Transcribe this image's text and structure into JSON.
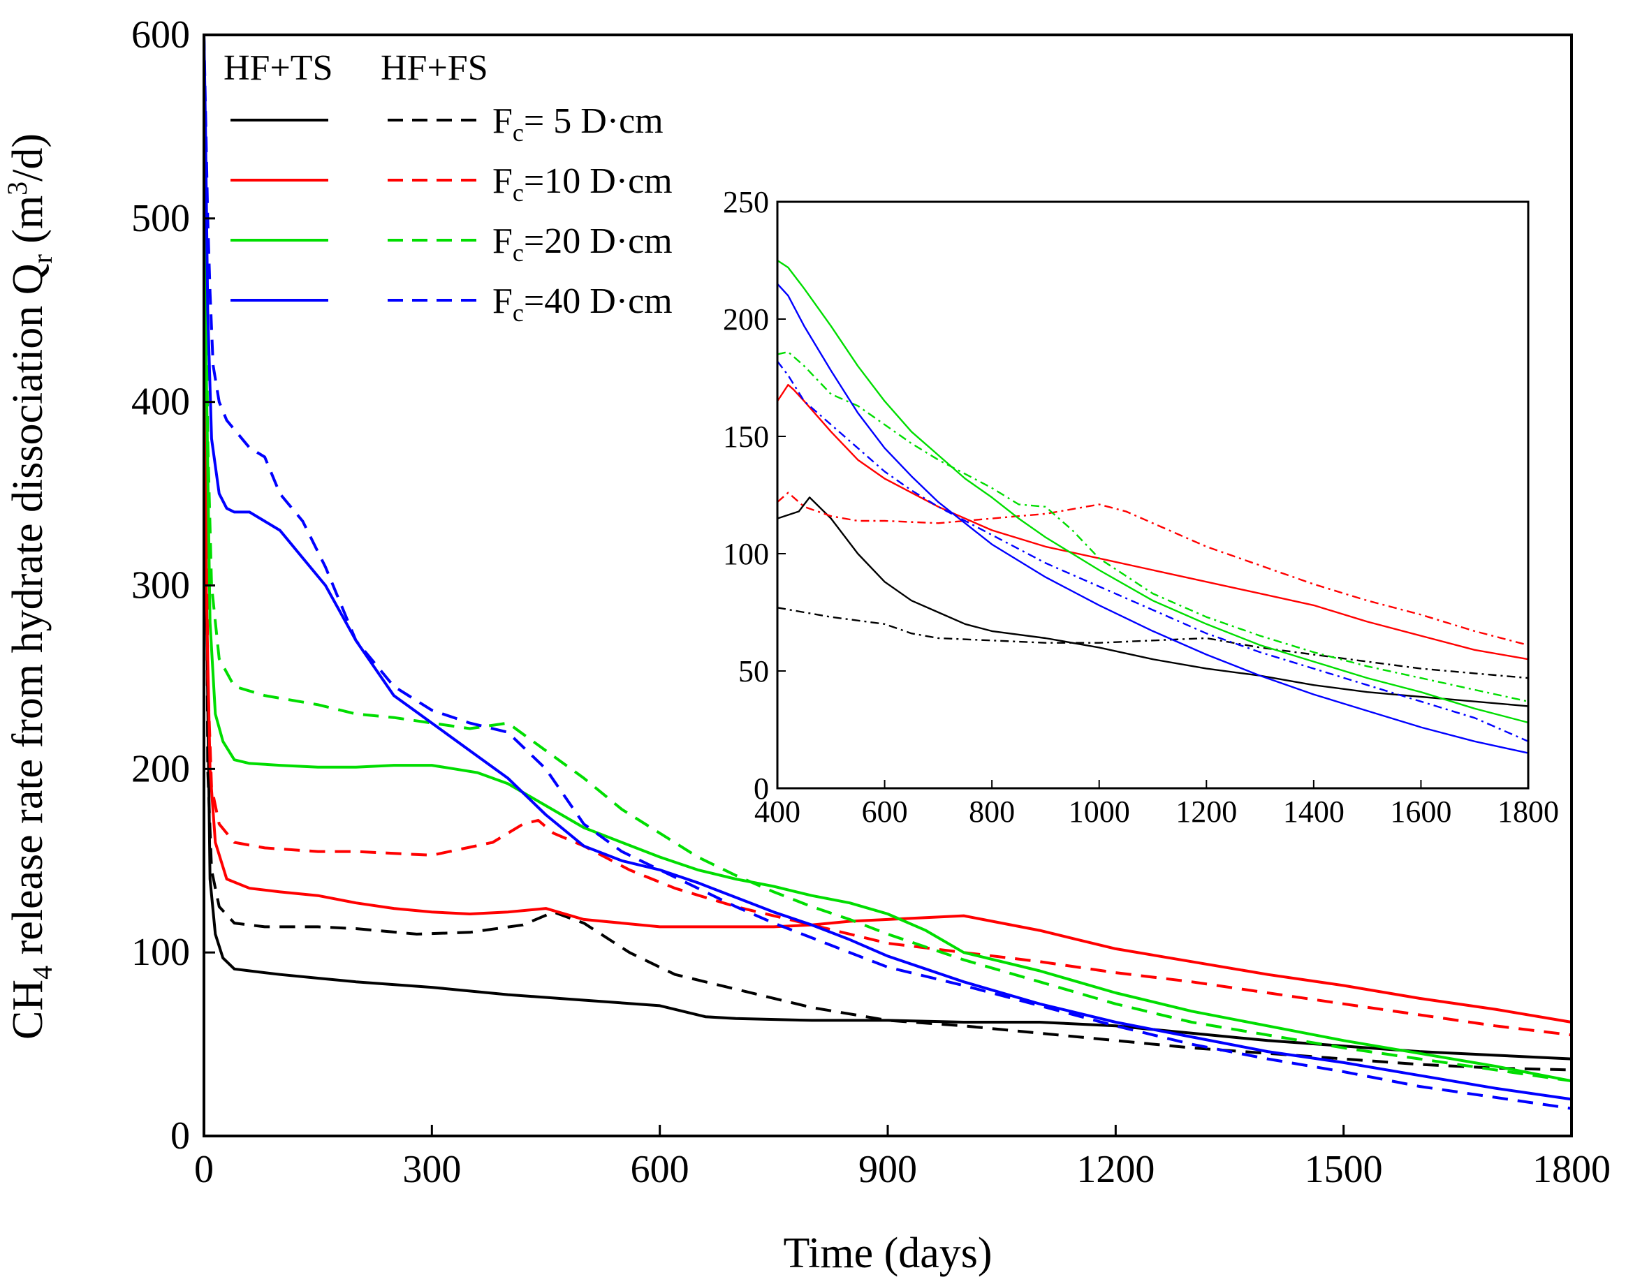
{
  "chart_data": {
    "main": {
      "type": "line",
      "title": "",
      "xlabel": "Time (days)",
      "ylabel": "CH4 release rate from hydrate dissociation Qr (m3/d)",
      "ylabel_parts": {
        "a": "CH",
        "a_sub": "4",
        "b": " release rate from hydrate dissociation Q",
        "b_sub": "r",
        "c": " (m",
        "c_sup": "3",
        "d": "/d)"
      },
      "xlim": [
        0,
        1800
      ],
      "ylim": [
        0,
        600
      ],
      "xticks": [
        0,
        300,
        600,
        900,
        1200,
        1500,
        1800
      ],
      "yticks": [
        0,
        100,
        200,
        300,
        400,
        500,
        600
      ],
      "legend": {
        "placement": "top-left",
        "col_headers": [
          "HF+TS",
          "HF+FS"
        ],
        "entries": [
          {
            "F": "F",
            "sub": "c",
            "label": "= 5  D·cm"
          },
          {
            "F": "F",
            "sub": "c",
            "label": "=10 D·cm"
          },
          {
            "F": "F",
            "sub": "c",
            "label": "=20 D·cm"
          },
          {
            "F": "F",
            "sub": "c",
            "label": "=40 D·cm"
          }
        ]
      },
      "series": [
        {
          "name": "HF+TS Fc=5 D·cm",
          "color": "#000000",
          "dash": "solid",
          "x": [
            0,
            3,
            8,
            15,
            25,
            40,
            60,
            100,
            150,
            200,
            300,
            400,
            500,
            600,
            660,
            700,
            800,
            900,
            1000,
            1100,
            1200,
            1300,
            1400,
            1500,
            1600,
            1700,
            1800
          ],
          "y": [
            600,
            300,
            140,
            110,
            97,
            91,
            90,
            88,
            86,
            84,
            81,
            77,
            74,
            71,
            65,
            64,
            63,
            63,
            62,
            62,
            60,
            56,
            52,
            49,
            46,
            44,
            42
          ]
        },
        {
          "name": "HF+FS Fc=5 D·cm",
          "color": "#000000",
          "dash": "dashed",
          "x": [
            0,
            5,
            10,
            20,
            40,
            80,
            150,
            200,
            280,
            350,
            420,
            460,
            500,
            560,
            620,
            700,
            800,
            900,
            1000,
            1100,
            1200,
            1300,
            1400,
            1500,
            1600,
            1700,
            1800
          ],
          "y": [
            600,
            200,
            145,
            125,
            116,
            114,
            114,
            113,
            110,
            111,
            115,
            122,
            116,
            100,
            88,
            80,
            70,
            63,
            60,
            56,
            52,
            48,
            45,
            42,
            39,
            37,
            36
          ]
        },
        {
          "name": "HF+TS Fc=10 D·cm",
          "color": "#ff0000",
          "dash": "solid",
          "x": [
            0,
            3,
            8,
            15,
            30,
            60,
            100,
            150,
            200,
            250,
            300,
            350,
            400,
            450,
            500,
            550,
            600,
            650,
            700,
            750,
            800,
            850,
            900,
            950,
            1000,
            1050,
            1100,
            1150,
            1200,
            1300,
            1400,
            1500,
            1600,
            1700,
            1800
          ],
          "y": [
            600,
            300,
            200,
            160,
            140,
            135,
            133,
            131,
            127,
            124,
            122,
            121,
            122,
            124,
            118,
            116,
            114,
            114,
            114,
            114,
            115,
            117,
            118,
            119,
            120,
            116,
            112,
            107,
            102,
            95,
            88,
            82,
            75,
            69,
            62
          ]
        },
        {
          "name": "HF+FS Fc=10 D·cm",
          "color": "#ff0000",
          "dash": "dashed",
          "x": [
            0,
            5,
            10,
            20,
            40,
            80,
            150,
            200,
            300,
            380,
            420,
            440,
            460,
            500,
            560,
            620,
            700,
            800,
            900,
            1000,
            1100,
            1200,
            1300,
            1400,
            1500,
            1600,
            1700,
            1800
          ],
          "y": [
            600,
            250,
            190,
            170,
            160,
            157,
            155,
            155,
            153,
            160,
            170,
            172,
            165,
            158,
            145,
            135,
            125,
            115,
            105,
            100,
            95,
            89,
            84,
            78,
            72,
            66,
            60,
            55
          ]
        },
        {
          "name": "HF+TS Fc=20 D·cm",
          "color": "#00dd00",
          "dash": "solid",
          "x": [
            0,
            3,
            8,
            15,
            25,
            40,
            60,
            100,
            150,
            200,
            250,
            300,
            330,
            360,
            400,
            450,
            500,
            550,
            600,
            650,
            700,
            750,
            800,
            850,
            900,
            950,
            1000,
            1100,
            1200,
            1300,
            1400,
            1500,
            1600,
            1700,
            1800
          ],
          "y": [
            600,
            420,
            280,
            230,
            215,
            205,
            203,
            202,
            201,
            201,
            202,
            202,
            200,
            198,
            192,
            180,
            168,
            160,
            152,
            145,
            140,
            136,
            131,
            127,
            121,
            112,
            100,
            90,
            78,
            68,
            60,
            52,
            45,
            38,
            30
          ]
        },
        {
          "name": "HF+FS Fc=20 D·cm",
          "color": "#00dd00",
          "dash": "dashed",
          "x": [
            0,
            5,
            10,
            20,
            40,
            80,
            150,
            200,
            250,
            300,
            350,
            400,
            450,
            500,
            550,
            600,
            650,
            700,
            750,
            800,
            850,
            900,
            1000,
            1100,
            1200,
            1300,
            1400,
            1500,
            1600,
            1700,
            1800
          ],
          "y": [
            600,
            380,
            300,
            260,
            245,
            240,
            235,
            230,
            228,
            225,
            222,
            225,
            210,
            195,
            178,
            165,
            152,
            142,
            133,
            125,
            118,
            110,
            96,
            84,
            72,
            62,
            55,
            48,
            42,
            36,
            30
          ]
        },
        {
          "name": "HF+TS Fc=40 D·cm",
          "color": "#0000ff",
          "dash": "solid",
          "x": [
            0,
            2,
            5,
            10,
            20,
            30,
            40,
            60,
            80,
            100,
            130,
            160,
            200,
            250,
            300,
            350,
            400,
            450,
            500,
            550,
            600,
            650,
            700,
            750,
            800,
            850,
            900,
            950,
            1000,
            1100,
            1200,
            1300,
            1400,
            1500,
            1600,
            1700,
            1800
          ],
          "y": [
            600,
            550,
            450,
            380,
            350,
            342,
            340,
            340,
            335,
            330,
            315,
            300,
            270,
            240,
            225,
            210,
            195,
            175,
            158,
            150,
            145,
            138,
            130,
            122,
            115,
            107,
            98,
            91,
            84,
            72,
            62,
            54,
            46,
            40,
            33,
            26,
            20
          ]
        },
        {
          "name": "HF+FS Fc=40 D·cm",
          "color": "#0000ff",
          "dash": "dashed",
          "x": [
            0,
            2,
            5,
            8,
            12,
            20,
            30,
            40,
            60,
            80,
            100,
            130,
            160,
            200,
            250,
            300,
            350,
            400,
            450,
            500,
            550,
            600,
            650,
            700,
            750,
            800,
            850,
            900,
            1000,
            1100,
            1200,
            1300,
            1400,
            1500,
            1600,
            1700,
            1800
          ],
          "y": [
            600,
            560,
            500,
            460,
            420,
            400,
            390,
            385,
            375,
            370,
            350,
            335,
            310,
            270,
            245,
            232,
            225,
            220,
            200,
            170,
            155,
            145,
            135,
            125,
            116,
            108,
            100,
            92,
            82,
            71,
            60,
            50,
            42,
            35,
            27,
            21,
            15
          ]
        }
      ]
    },
    "inset": {
      "type": "line",
      "xlim": [
        400,
        1800
      ],
      "ylim": [
        0,
        250
      ],
      "xticks": [
        400,
        600,
        800,
        1000,
        1200,
        1400,
        1600,
        1800
      ],
      "yticks": [
        0,
        50,
        100,
        150,
        200,
        250
      ],
      "series": [
        {
          "name": "HF+TS Fc=5 D·cm",
          "color": "#000000",
          "dash": "solid",
          "x": [
            400,
            440,
            460,
            500,
            550,
            600,
            650,
            700,
            750,
            800,
            900,
            1000,
            1100,
            1200,
            1300,
            1400,
            1500,
            1600,
            1700,
            1800
          ],
          "y": [
            115,
            118,
            124,
            115,
            100,
            88,
            80,
            75,
            70,
            67,
            64,
            60,
            55,
            51,
            48,
            44,
            41,
            39,
            37,
            35
          ]
        },
        {
          "name": "HF+FS Fc=5 D·cm",
          "color": "#000000",
          "dash": "dashdot",
          "x": [
            400,
            500,
            600,
            650,
            700,
            800,
            900,
            1000,
            1100,
            1200,
            1300,
            1400,
            1500,
            1600,
            1700,
            1800
          ],
          "y": [
            77,
            73,
            70,
            66,
            64,
            63,
            62,
            62,
            63,
            64,
            60,
            57,
            54,
            51,
            49,
            47
          ]
        },
        {
          "name": "HF+TS Fc=10 D·cm",
          "color": "#ff0000",
          "dash": "solid",
          "x": [
            400,
            420,
            430,
            450,
            500,
            550,
            600,
            700,
            800,
            900,
            1000,
            1100,
            1200,
            1300,
            1400,
            1500,
            1600,
            1700,
            1800
          ],
          "y": [
            165,
            172,
            170,
            165,
            152,
            140,
            132,
            120,
            110,
            103,
            98,
            93,
            88,
            83,
            78,
            71,
            65,
            59,
            55
          ]
        },
        {
          "name": "HF+FS Fc=10 D·cm",
          "color": "#ff0000",
          "dash": "dashdot",
          "x": [
            400,
            420,
            450,
            500,
            550,
            600,
            700,
            800,
            850,
            900,
            950,
            1000,
            1050,
            1100,
            1200,
            1300,
            1400,
            1500,
            1600,
            1700,
            1800
          ],
          "y": [
            122,
            126,
            120,
            116,
            114,
            114,
            113,
            115,
            116,
            117,
            119,
            121,
            118,
            113,
            103,
            95,
            87,
            80,
            74,
            67,
            61
          ]
        },
        {
          "name": "HF+TS Fc=20 D·cm",
          "color": "#00dd00",
          "dash": "solid",
          "x": [
            400,
            420,
            450,
            500,
            550,
            600,
            650,
            700,
            750,
            800,
            850,
            900,
            950,
            1000,
            1100,
            1200,
            1300,
            1400,
            1500,
            1600,
            1700,
            1800
          ],
          "y": [
            225,
            222,
            213,
            197,
            180,
            165,
            152,
            142,
            132,
            124,
            115,
            107,
            100,
            93,
            80,
            70,
            61,
            54,
            47,
            41,
            34,
            28
          ]
        },
        {
          "name": "HF+FS Fc=20 D·cm",
          "color": "#00dd00",
          "dash": "dashdot",
          "x": [
            400,
            420,
            450,
            500,
            550,
            600,
            650,
            700,
            800,
            850,
            900,
            950,
            1000,
            1100,
            1200,
            1300,
            1400,
            1500,
            1600,
            1700,
            1800
          ],
          "y": [
            185,
            186,
            180,
            168,
            163,
            155,
            147,
            140,
            128,
            121,
            120,
            110,
            98,
            83,
            73,
            65,
            58,
            52,
            47,
            42,
            37
          ]
        },
        {
          "name": "HF+TS Fc=40 D·cm",
          "color": "#0000ff",
          "dash": "solid",
          "x": [
            400,
            420,
            450,
            500,
            550,
            600,
            650,
            700,
            800,
            900,
            1000,
            1100,
            1200,
            1300,
            1400,
            1500,
            1600,
            1700,
            1800
          ],
          "y": [
            215,
            210,
            197,
            178,
            160,
            145,
            133,
            122,
            104,
            90,
            78,
            67,
            57,
            48,
            40,
            33,
            26,
            20,
            15
          ]
        },
        {
          "name": "HF+FS Fc=40 D·cm",
          "color": "#0000ff",
          "dash": "dashdot",
          "x": [
            400,
            420,
            450,
            500,
            550,
            600,
            650,
            700,
            800,
            900,
            1000,
            1100,
            1200,
            1300,
            1400,
            1500,
            1600,
            1700,
            1800
          ],
          "y": [
            182,
            176,
            165,
            155,
            145,
            135,
            127,
            120,
            108,
            96,
            86,
            76,
            66,
            58,
            51,
            44,
            37,
            30,
            20
          ]
        }
      ]
    }
  }
}
